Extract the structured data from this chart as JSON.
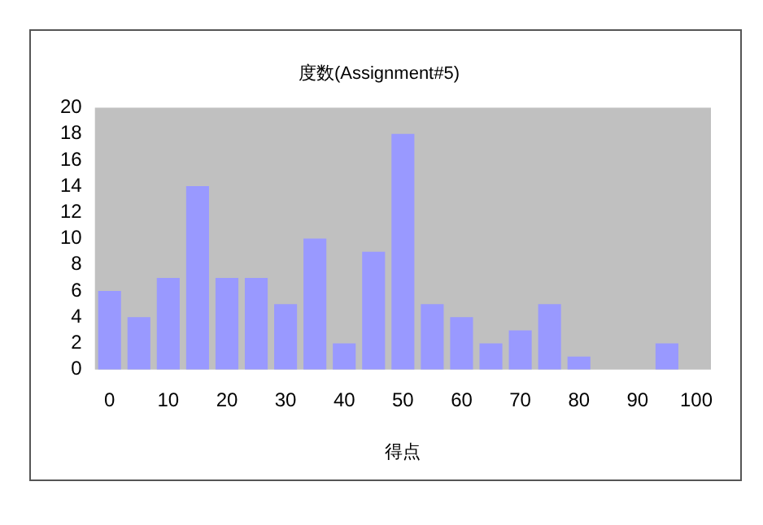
{
  "chart_data": {
    "type": "bar",
    "title": "度数(Assignment#5)",
    "xlabel": "得点",
    "categories": [
      "0",
      null,
      "10",
      null,
      "20",
      null,
      "30",
      null,
      "40",
      null,
      "50",
      null,
      "60",
      null,
      "70",
      null,
      "80",
      null,
      "90",
      null,
      "100"
    ],
    "values": [
      6,
      4,
      7,
      14,
      7,
      7,
      5,
      10,
      2,
      9,
      18,
      5,
      4,
      2,
      3,
      5,
      1,
      0,
      0,
      2,
      0
    ],
    "color": "#9999ff",
    "ylim": [
      0,
      20
    ],
    "yticks": [
      0,
      2,
      4,
      6,
      8,
      10,
      12,
      14,
      16,
      18,
      20
    ],
    "grid": false,
    "legend": false
  }
}
